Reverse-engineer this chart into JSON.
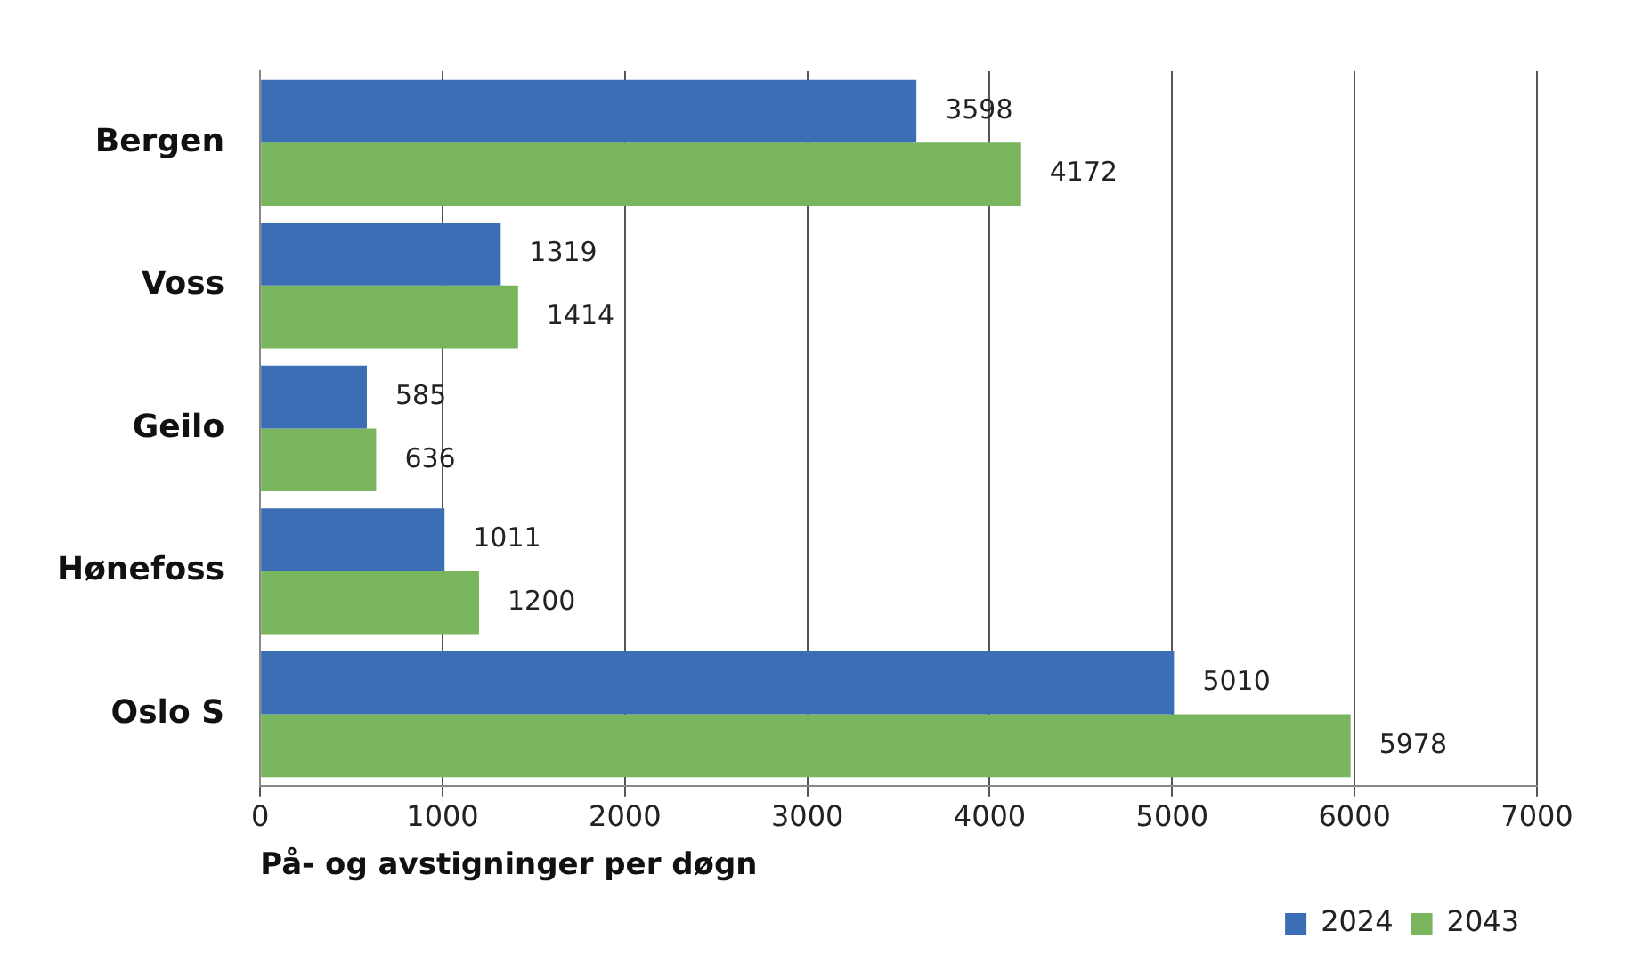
{
  "chart_data": {
    "type": "bar",
    "orientation": "horizontal",
    "xlabel": "På- og avstigninger per døgn",
    "categories": [
      "Bergen",
      "Voss",
      "Geilo",
      "Hønefoss",
      "Oslo S"
    ],
    "series": [
      {
        "name": "2024",
        "color": "#3b6eb4",
        "values": [
          3598,
          1319,
          585,
          1011,
          5010
        ]
      },
      {
        "name": "2043",
        "color": "#79b55c",
        "values": [
          4172,
          1414,
          636,
          1200,
          5978
        ]
      }
    ],
    "xlim": [
      0,
      7000
    ],
    "xticks": [
      0,
      1000,
      2000,
      3000,
      4000,
      5000,
      6000,
      7000
    ],
    "grid": "x",
    "legend": "bottom right",
    "data_labels": true
  }
}
